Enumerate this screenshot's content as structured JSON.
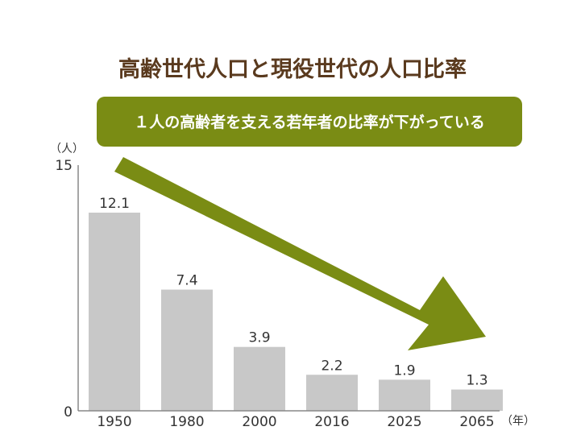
{
  "colors": {
    "title": "#5a3a1e",
    "accent": "#7a8c14",
    "bar": "#c8c8c8",
    "text": "#333333",
    "axis": "#888888"
  },
  "chart_data": {
    "type": "bar",
    "title": "高齢世代人口と現役世代の人口比率",
    "annotation": "１人の高齢者を支える若年者の比率が下がっている",
    "xlabel": "（年）",
    "ylabel": "（人）",
    "ylim": [
      0,
      15
    ],
    "y_ticks": [
      "0",
      "15"
    ],
    "categories": [
      "1950",
      "1980",
      "2000",
      "2016",
      "2025",
      "2065"
    ],
    "values": [
      12.1,
      7.4,
      3.9,
      2.2,
      1.9,
      1.3
    ],
    "value_labels": [
      "12.1",
      "7.4",
      "3.9",
      "2.2",
      "1.9",
      "1.3"
    ],
    "grid": false,
    "legend": "none"
  }
}
